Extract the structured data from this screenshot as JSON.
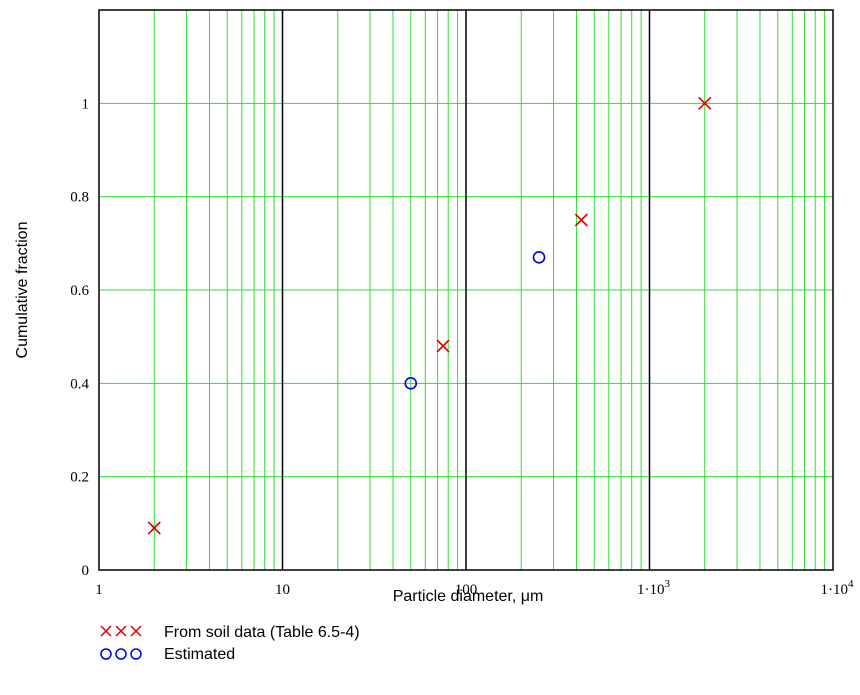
{
  "chart_data": {
    "type": "scatter",
    "x_scale": "log",
    "xlim": [
      1,
      10000
    ],
    "ylim": [
      0,
      1.2
    ],
    "grid": true,
    "xlabel": "Particle diameter, μm",
    "ylabel": "Cumulative fraction",
    "x_tick_labels": [
      {
        "value": 1,
        "base": "1",
        "exp": ""
      },
      {
        "value": 10,
        "base": "10",
        "exp": ""
      },
      {
        "value": 100,
        "base": "100",
        "exp": ""
      },
      {
        "value": 1000,
        "base": "1·10",
        "exp": "3"
      },
      {
        "value": 10000,
        "base": "1·10",
        "exp": "4"
      }
    ],
    "y_ticks": [
      0,
      0.2,
      0.4,
      0.6,
      0.8,
      1
    ],
    "y_tick_labels": [
      "0",
      "0.2",
      "0.4",
      "0.6",
      "0.8",
      "1"
    ],
    "legend_placement": "bottom-left",
    "series": [
      {
        "name": "From soil data (Table 6.5-4)",
        "marker": "x",
        "marker_glyph": "×××",
        "color": "#e00000",
        "points": [
          {
            "x": 2,
            "y": 0.09
          },
          {
            "x": 75,
            "y": 0.48
          },
          {
            "x": 425,
            "y": 0.75
          },
          {
            "x": 2000,
            "y": 1.0
          }
        ]
      },
      {
        "name": "Estimated",
        "marker": "o",
        "marker_glyph": "ooo",
        "color": "#0000e0",
        "points": [
          {
            "x": 50,
            "y": 0.4
          },
          {
            "x": 250,
            "y": 0.67
          }
        ]
      }
    ],
    "colors": {
      "major_grid": "#000000",
      "minor_grid": "#33dd33",
      "frame": "#000000"
    }
  }
}
